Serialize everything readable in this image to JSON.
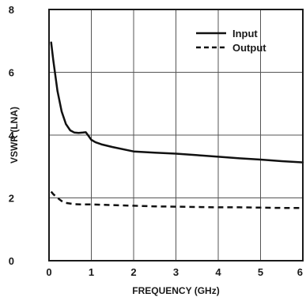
{
  "chart_data": {
    "type": "line",
    "title": "",
    "xlabel": "FREQUENCY (GHz)",
    "ylabel": "VSWR (LNA)",
    "xlim": [
      0,
      6
    ],
    "ylim": [
      0,
      8
    ],
    "x_ticks": [
      0,
      1,
      2,
      3,
      4,
      5,
      6
    ],
    "y_ticks": [
      0,
      2,
      4,
      6,
      8
    ],
    "grid": true,
    "legend_position": "top-right",
    "series": [
      {
        "name": "Input",
        "line_style": "solid",
        "color": "#111111",
        "x": [
          0.05,
          0.1,
          0.15,
          0.2,
          0.3,
          0.4,
          0.5,
          0.6,
          0.7,
          0.8,
          0.87,
          0.92,
          1.0,
          1.1,
          1.25,
          1.5,
          2.0,
          2.5,
          3.0,
          3.5,
          4.0,
          4.5,
          5.0,
          5.5,
          6.0
        ],
        "y": [
          6.95,
          6.4,
          5.9,
          5.4,
          4.75,
          4.35,
          4.15,
          4.08,
          4.07,
          4.08,
          4.09,
          4.0,
          3.85,
          3.77,
          3.7,
          3.62,
          3.48,
          3.44,
          3.41,
          3.36,
          3.31,
          3.26,
          3.22,
          3.17,
          3.13
        ]
      },
      {
        "name": "Output",
        "line_style": "dashed",
        "color": "#111111",
        "x": [
          0.05,
          0.1,
          0.2,
          0.3,
          0.4,
          0.6,
          0.8,
          1.0,
          1.5,
          2.0,
          2.5,
          3.0,
          3.5,
          4.0,
          4.5,
          5.0,
          5.5,
          6.0
        ],
        "y": [
          2.2,
          2.12,
          2.0,
          1.9,
          1.84,
          1.8,
          1.79,
          1.79,
          1.77,
          1.75,
          1.73,
          1.72,
          1.71,
          1.7,
          1.7,
          1.69,
          1.68,
          1.68
        ]
      }
    ]
  }
}
